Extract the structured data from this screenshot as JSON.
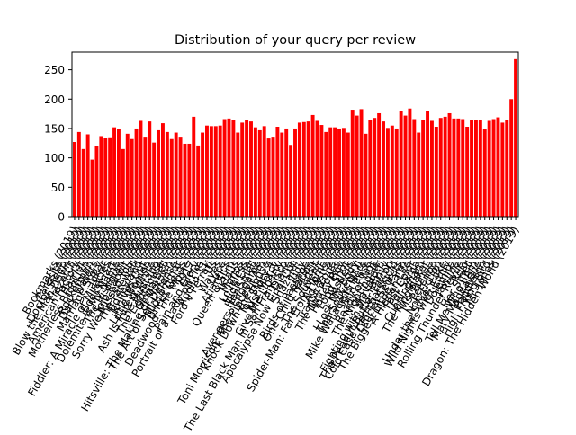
{
  "chart_data": {
    "type": "bar",
    "title": "Distribution of your query per review",
    "xlabel": "",
    "ylabel": "",
    "ylim": [
      0,
      280
    ],
    "yticks": [
      0,
      50,
      100,
      150,
      200,
      250
    ],
    "bar_color": "#ff0000",
    "grid": false,
    "values": [
      127,
      144,
      115,
      140,
      97,
      120,
      137,
      134,
      135,
      152,
      149,
      115,
      141,
      132,
      150,
      163,
      136,
      162,
      126,
      147,
      159,
      144,
      132,
      143,
      136,
      124,
      124,
      170,
      121,
      143,
      155,
      154,
      154,
      155,
      166,
      167,
      164,
      143,
      160,
      164,
      162,
      152,
      147,
      154,
      133,
      136,
      153,
      143,
      150,
      122,
      150,
      160,
      161,
      162,
      173,
      163,
      156,
      144,
      152,
      152,
      150,
      151,
      143,
      182,
      172,
      183,
      141,
      164,
      168,
      176,
      162,
      151,
      155,
      150,
      180,
      172,
      184,
      166,
      143,
      165,
      180,
      163,
      153,
      168,
      170,
      176,
      167,
      167,
      166,
      153,
      164,
      165,
      164,
      149,
      163,
      166,
      169,
      160,
      165,
      200,
      268
    ],
    "categories": [
      "Bookmarks (2019)",
      "Parasite (2019)",
      "Doctor Sleep (2019)",
      "Blow the Man Down (2019)",
      "Frozen II (2019)",
      "American Factory (2019)",
      "Harriet (2019)",
      "Motherless Brooklyn (2019)",
      "Rocketman (2019)",
      "Dark Waters (2019)",
      "Marriage Story (2019)",
      "Joker (2019)",
      "Fiddler: A Miracle of Miracles (2019)",
      "Booksmart (2019)",
      "Dolemite Is My Name (2019)",
      "The Irishman (2019)",
      "Jojo Rabbit (2019)",
      "Sorry We Missed You (2019)",
      "The Farewell (2019)",
      "Honeyland (2019)",
      "Knives Out (2019)",
      "Little Women (2019)",
      "Ash Is Purest White (2019)",
      "The Mustang (2019)",
      "The Lighthouse (2019)",
      "Gloria Bell (2019)",
      "Hitsville: The Making of Motown (2019)",
      "The Art of Self-Defense (2019)",
      "Midsommar (2019)",
      "Uncut Gems (2019)",
      "Deadwood: The Movie (2019)",
      "1917 (2019)",
      "Pain and Glory (2019)",
      "Portrait of a Lady on Fire (2019)",
      "Apollo 11 (2019)",
      "Ford v Ferrari (2019)",
      "Us (2019)",
      "Waves (2019)",
      "Luce (2019)",
      "Atlantics (2019)",
      "Queen & Slim (2019)",
      "Klaus (2019)",
      "Monos (2019)",
      "Loveless (2019)",
      "High Life (2019)",
      "Her Smell (2019)",
      "Avengers: Endgame (2019)",
      "Toni Morrison: The Pieces I Am (2019)",
      "Knock Down the House (2019)",
      "Toy Story 4 (2019)",
      "Just Mercy (2019)",
      "Give Me Liberty (2019)",
      "The Last Black Man in San Francisco (2019)",
      "Diane (2019)",
      "Apocalypse Now Final Cut (2019)",
      "Shazam! (2019)",
      "Judy (2019)",
      "Birds of Passage (2019)",
      "One Child Nation (2019)",
      "Transit (2019)",
      "The Souvenir (2019)",
      "Spider-Man: Far From Home (2019)",
      "Ad Astra (2019)",
      "Transit Zone (2019)",
      "The Two Popes (2019)",
      "Honey Boy (2019)",
      "Long Shot (2019)",
      "Hustlers (2019)",
      "I Lost My Body (2019)",
      "The Souvenir II (2019)",
      "Mike Wallace Is Here (2019)",
      "Wild Rose (2019)",
      "Ready or Not (2019)",
      "The Nightingale (2019)",
      "Pavarotti (2019)",
      "Fighting with My Family (2019)",
      "The Peanut Butter Falcon (2019)",
      "Cold Case Hammarskjold (2019)",
      "Official Secrets (2019)",
      "The Biggest Little Farm (2019)",
      "A Hidden Life (2019)",
      "Fast Color (2019)",
      "For Sama (2019)",
      "Cunningham (2019)",
      "The Kingmaker (2019)",
      "Ms. Purple (2019)",
      "Peterloo (2019)",
      "Non-Fiction (2019)",
      "Under the Silver Lake (2019)",
      "Wild Nights with Emily (2019)",
      "Dolemite (2019)",
      "Jawline (2019)",
      "Rolling Thunder Revue (2019)",
      "Rojo (2019)",
      "Her Smell (2019)",
      "Tell Me Who I Am (2019)",
      "Mary Magdalene (2019)",
      "Paddleton (2019)",
      "High Flying Bird (2019)",
      "Mr. Jones (2019)",
      "Dragon: The Hidden World (2019)"
    ]
  }
}
